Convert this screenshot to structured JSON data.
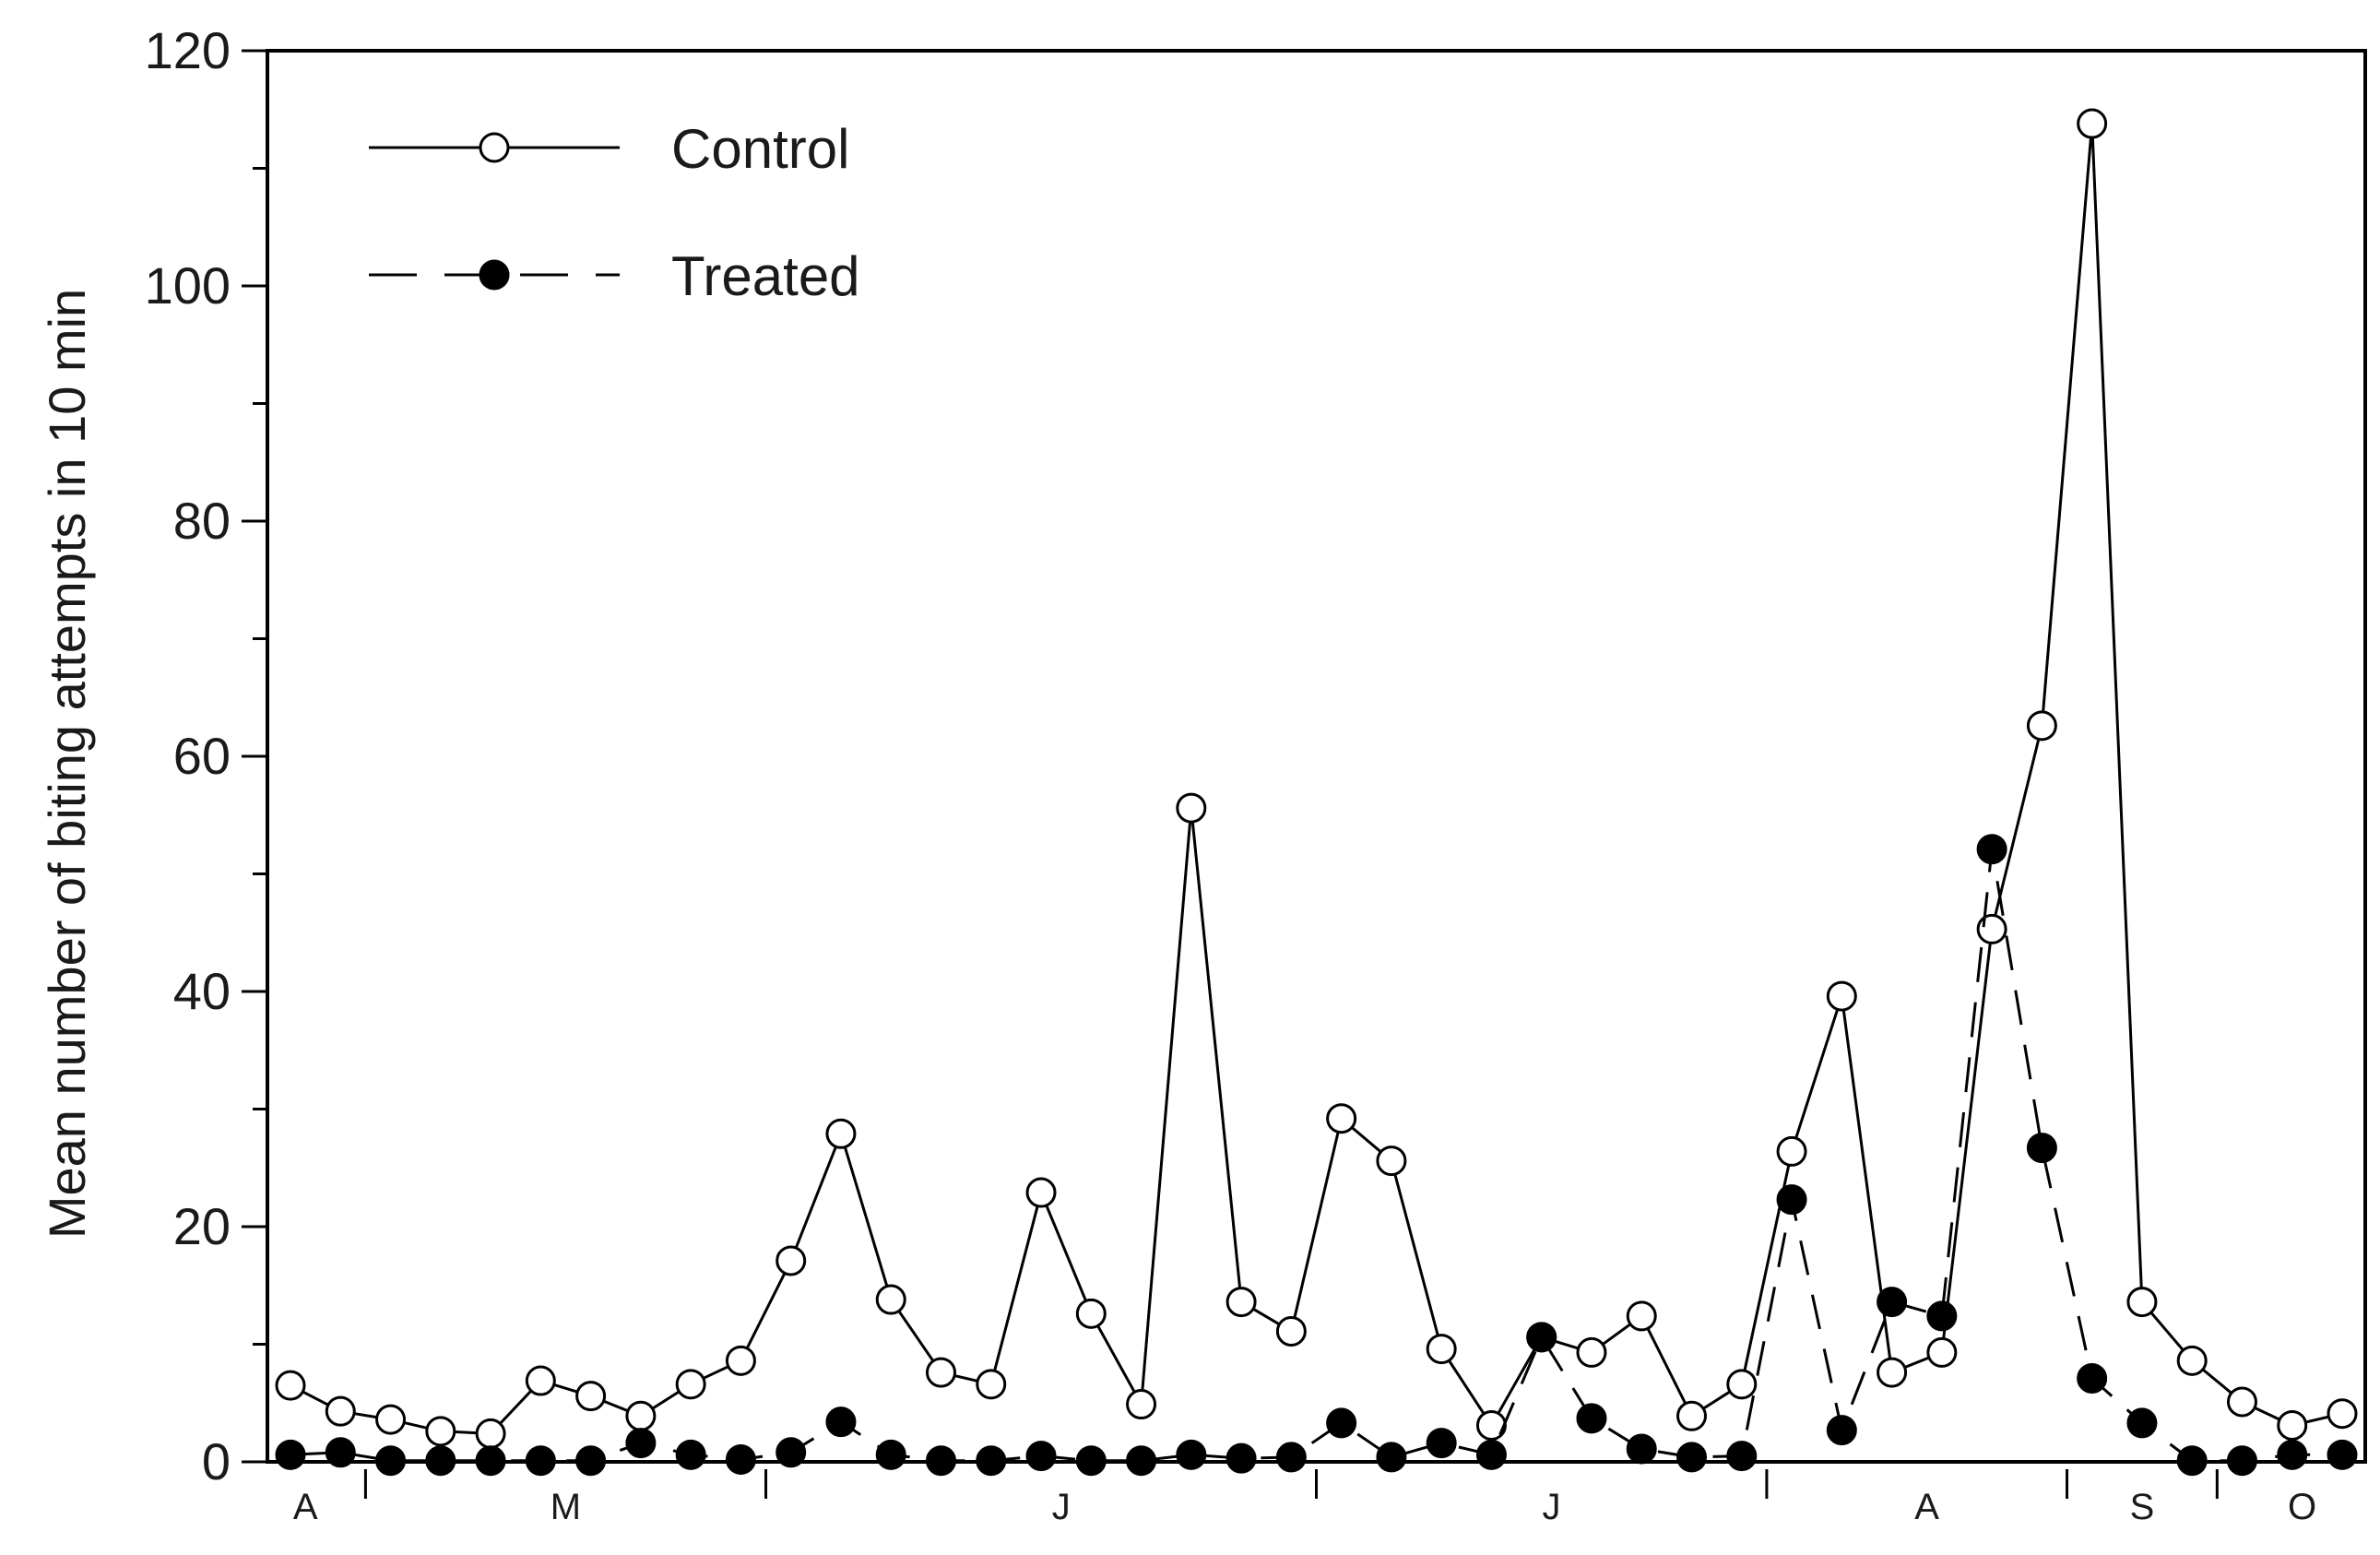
{
  "chart_data": {
    "type": "line",
    "title": "",
    "xlabel": "",
    "ylabel": "Mean number of biting attempts in 10 min",
    "ylim": [
      0,
      120
    ],
    "yticks": [
      "0",
      "20",
      "40",
      "60",
      "80",
      "100",
      "120"
    ],
    "xlim": [
      0,
      42
    ],
    "x": [
      1,
      2,
      3,
      4,
      5,
      6,
      7,
      8,
      9,
      10,
      11,
      12,
      13,
      14,
      15,
      16,
      17,
      18,
      19,
      20,
      21,
      22,
      23,
      24,
      25,
      26,
      27,
      28,
      29,
      30,
      31,
      32,
      33,
      34,
      35,
      36,
      37,
      38,
      39,
      40,
      41
    ],
    "month_labels": [
      "A",
      "M",
      "J",
      "J",
      "A",
      "S",
      "O"
    ],
    "grid": false,
    "legend_position": "top-left",
    "series": [
      {
        "name": "Control",
        "style": "solid",
        "marker": "open-circle",
        "color": "#000000",
        "values": [
          6.5,
          4.3,
          3.6,
          2.6,
          2.4,
          6.9,
          5.6,
          3.9,
          6.6,
          8.6,
          17.1,
          27.9,
          13.8,
          7.6,
          6.6,
          22.9,
          12.6,
          4.9,
          55.6,
          13.6,
          11.1,
          29.2,
          25.6,
          9.6,
          3.1,
          10.6,
          9.3,
          12.4,
          3.9,
          6.6,
          26.4,
          39.6,
          7.6,
          9.3,
          45.3,
          62.6,
          113.8,
          13.6,
          8.6,
          5.1,
          3.1
        ]
      },
      {
        "name": "Treated",
        "style": "dashed",
        "marker": "filled-circle",
        "color": "#000000",
        "values": [
          0.6,
          0.8,
          0.1,
          0.1,
          0.1,
          0.1,
          0.1,
          1.6,
          0.6,
          0.2,
          0.8,
          3.4,
          0.6,
          0.1,
          0.1,
          0.5,
          0.1,
          0.1,
          0.6,
          0.3,
          0.4,
          3.3,
          0.4,
          1.6,
          0.6,
          10.6,
          3.7,
          1.1,
          0.4,
          0.5,
          22.3,
          2.7,
          13.6,
          12.4,
          52.1,
          26.7,
          7.1,
          3.3,
          0.1,
          0.1,
          0.6
        ]
      }
    ],
    "extra_point": {
      "series": "Treated",
      "x": 42,
      "y": 0.6
    },
    "extra_point_control": {
      "series": "Control",
      "x": 42,
      "y": 4.1
    }
  }
}
